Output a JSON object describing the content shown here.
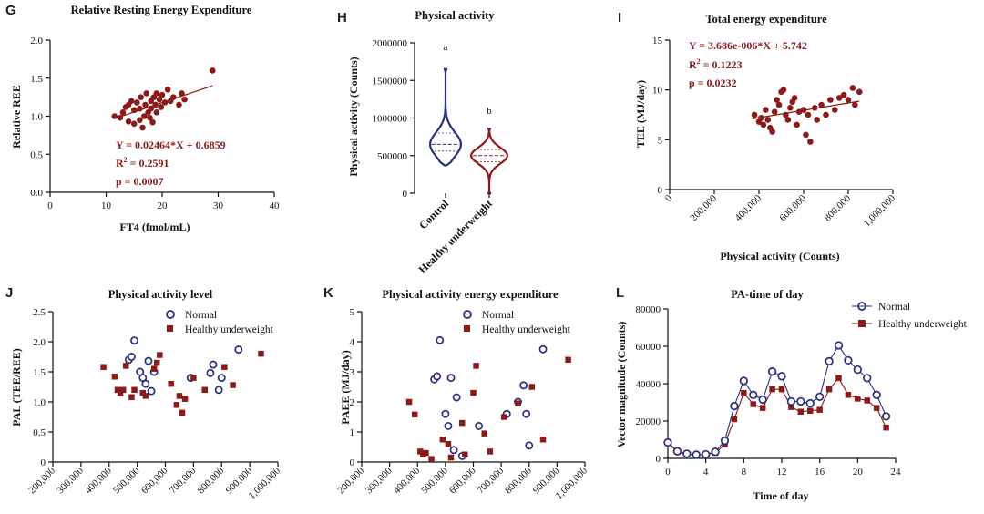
{
  "colors": {
    "dark_red": "#8b1a1a",
    "navy": "#28307f",
    "black": "#111111"
  },
  "panels": {
    "G": {
      "letter": "G",
      "title": "Relative Resting Energy Expenditure",
      "xlabel": "FT4 (fmol/mL)",
      "ylabel": "Relative REE",
      "eq": "Y = 0.02464*X + 0.6859",
      "r2_label": "R",
      "r2_value": "= 0.2591",
      "p": "p = 0.0007"
    },
    "H": {
      "letter": "H",
      "title": "Physical activity",
      "ylabel": "Physical activity (Counts)",
      "label_a": "a",
      "label_b": "b"
    },
    "I": {
      "letter": "I",
      "title": "Total energy expenditure",
      "xlabel": "Physical activity (Counts)",
      "ylabel": "TEE (MJ/day)",
      "eq": "Y = 3.686e-006*X + 5.742",
      "r2_label": "R",
      "r2_value": "= 0.1223",
      "p": "p = 0.0232"
    },
    "J": {
      "letter": "J",
      "title": "Physical activity level",
      "ylabel": "PAL (TEE/REE)",
      "legend": [
        "Normal",
        "Healthy underweight"
      ]
    },
    "K": {
      "letter": "K",
      "title": "Physical activity energy expenditure",
      "ylabel": "PAEE (MJ/day)",
      "legend": [
        "Normal",
        "Healthy underweight"
      ]
    },
    "L": {
      "letter": "L",
      "title": "PA-time of day",
      "xlabel": "Time of day",
      "ylabel": "Vector magnitude (Counts)",
      "legend": [
        "Normal",
        "Healthy underweight"
      ]
    }
  },
  "chart_data": [
    {
      "id": "G",
      "type": "scatter",
      "title": "Relative Resting Energy Expenditure",
      "xlabel": "FT4 (fmol/mL)",
      "ylabel": "Relative REE",
      "xlim": [
        0,
        40
      ],
      "ylim": [
        0,
        2.0
      ],
      "xticks": [
        0,
        10,
        20,
        30,
        40
      ],
      "yticks": [
        0.0,
        0.5,
        1.0,
        1.5,
        2.0
      ],
      "ytick_labels": [
        "0.0",
        "0.5",
        "1.0",
        "1.5",
        "2.0"
      ],
      "fit": {
        "slope": 0.02464,
        "intercept": 0.6859,
        "x_range": [
          11.5,
          29
        ]
      },
      "points": [
        [
          11.5,
          1.0
        ],
        [
          12.5,
          0.98
        ],
        [
          13,
          1.05
        ],
        [
          13.5,
          1.12
        ],
        [
          14,
          0.93
        ],
        [
          14,
          1.15
        ],
        [
          14.5,
          1.2
        ],
        [
          15,
          0.9
        ],
        [
          15,
          1.08
        ],
        [
          15.5,
          1.18
        ],
        [
          16,
          0.95
        ],
        [
          16,
          1.1
        ],
        [
          16.2,
          1.25
        ],
        [
          16.5,
          0.85
        ],
        [
          16.8,
          1.0
        ],
        [
          17,
          1.15
        ],
        [
          17.2,
          1.3
        ],
        [
          17.5,
          1.05
        ],
        [
          17.8,
          0.98
        ],
        [
          18,
          1.2
        ],
        [
          18,
          1.1
        ],
        [
          18.3,
          0.92
        ],
        [
          18.5,
          1.25
        ],
        [
          18.8,
          1.15
        ],
        [
          19,
          1.05
        ],
        [
          19,
          1.3
        ],
        [
          19.5,
          1.22
        ],
        [
          19.8,
          1.12
        ],
        [
          20,
          1.28
        ],
        [
          20.5,
          1.18
        ],
        [
          21,
          1.35
        ],
        [
          21.5,
          1.2
        ],
        [
          22,
          1.25
        ],
        [
          23,
          1.15
        ],
        [
          23.5,
          1.3
        ],
        [
          24,
          1.22
        ],
        [
          29,
          1.6
        ]
      ]
    },
    {
      "id": "H",
      "type": "violin",
      "title": "Physical activity",
      "ylabel": "Physical activity (Counts)",
      "ylim": [
        0,
        2000000
      ],
      "yticks": [
        0,
        500000,
        1000000,
        1500000,
        2000000
      ],
      "ytick_labels": [
        "0",
        "500000",
        "1000000",
        "1500000",
        "2000000"
      ],
      "categories": [
        "Control",
        "Healthy underweight"
      ],
      "groups": [
        {
          "name": "Control",
          "min": 370000,
          "max": 1650000,
          "median": 650000,
          "q1": 560000,
          "q3": 800000
        },
        {
          "name": "Healthy underweight",
          "min": 0,
          "max": 860000,
          "median": 500000,
          "q1": 420000,
          "q3": 580000
        }
      ]
    },
    {
      "id": "I",
      "type": "scatter",
      "title": "Total energy expenditure",
      "xlabel": "Physical activity (Counts)",
      "ylabel": "TEE (MJ/day)",
      "xlim": [
        0,
        1000000
      ],
      "ylim": [
        0,
        15
      ],
      "xticks": [
        0,
        200000,
        400000,
        600000,
        800000,
        1000000
      ],
      "xtick_labels": [
        "0",
        "200,000",
        "400,000",
        "600,000",
        "800,000",
        "1,000,000"
      ],
      "yticks": [
        0,
        5,
        10,
        15
      ],
      "fit": {
        "slope": 3.686e-06,
        "intercept": 5.742,
        "x_range": [
          370000,
          850000
        ]
      },
      "points": [
        [
          380000,
          7.5
        ],
        [
          400000,
          6.8
        ],
        [
          410000,
          7.2
        ],
        [
          420000,
          6.5
        ],
        [
          430000,
          8.0
        ],
        [
          440000,
          7.0
        ],
        [
          450000,
          6.2
        ],
        [
          460000,
          5.8
        ],
        [
          470000,
          7.8
        ],
        [
          480000,
          9.0
        ],
        [
          490000,
          8.5
        ],
        [
          500000,
          9.8
        ],
        [
          510000,
          10.0
        ],
        [
          520000,
          7.5
        ],
        [
          530000,
          7.0
        ],
        [
          540000,
          8.2
        ],
        [
          550000,
          8.8
        ],
        [
          560000,
          9.2
        ],
        [
          570000,
          6.5
        ],
        [
          580000,
          7.8
        ],
        [
          600000,
          8.0
        ],
        [
          610000,
          5.5
        ],
        [
          620000,
          7.5
        ],
        [
          630000,
          4.8
        ],
        [
          650000,
          8.2
        ],
        [
          660000,
          7.0
        ],
        [
          680000,
          8.5
        ],
        [
          700000,
          7.5
        ],
        [
          720000,
          9.0
        ],
        [
          740000,
          8.0
        ],
        [
          760000,
          9.2
        ],
        [
          780000,
          9.5
        ],
        [
          800000,
          9.0
        ],
        [
          820000,
          10.2
        ],
        [
          830000,
          8.5
        ],
        [
          850000,
          9.8
        ]
      ]
    },
    {
      "id": "J",
      "type": "scatter",
      "title": "Physical activity level",
      "ylabel": "PAL (TEE/REE)",
      "xlim": [
        200000,
        1000000
      ],
      "ylim": [
        0,
        2.5
      ],
      "xticks": [
        200000,
        300000,
        400000,
        500000,
        600000,
        700000,
        800000,
        900000,
        1000000
      ],
      "xtick_labels": [
        "200,000",
        "300,000",
        "400,000",
        "500,000",
        "600,000",
        "700,000",
        "800,000",
        "900,000",
        "1,000,000"
      ],
      "yticks": [
        0,
        0.5,
        1.0,
        1.5,
        2.0,
        2.5
      ],
      "ytick_labels": [
        "0",
        "0.5",
        "1.0",
        "1.5",
        "2.0",
        "2.5"
      ],
      "series": [
        {
          "name": "Normal",
          "marker": "open-circle",
          "points": [
            [
              470000,
              1.7
            ],
            [
              480000,
              1.75
            ],
            [
              490000,
              2.02
            ],
            [
              510000,
              1.5
            ],
            [
              520000,
              1.4
            ],
            [
              530000,
              1.3
            ],
            [
              540000,
              1.68
            ],
            [
              550000,
              1.18
            ],
            [
              560000,
              1.5
            ],
            [
              690000,
              1.4
            ],
            [
              760000,
              1.48
            ],
            [
              770000,
              1.62
            ],
            [
              790000,
              1.2
            ],
            [
              800000,
              1.4
            ],
            [
              860000,
              1.87
            ]
          ]
        },
        {
          "name": "Healthy underweight",
          "marker": "filled-square",
          "points": [
            [
              380000,
              1.58
            ],
            [
              420000,
              1.42
            ],
            [
              430000,
              1.2
            ],
            [
              440000,
              1.15
            ],
            [
              450000,
              1.2
            ],
            [
              460000,
              1.6
            ],
            [
              480000,
              1.08
            ],
            [
              490000,
              1.2
            ],
            [
              520000,
              1.15
            ],
            [
              530000,
              1.1
            ],
            [
              560000,
              1.55
            ],
            [
              570000,
              1.65
            ],
            [
              580000,
              1.78
            ],
            [
              620000,
              1.3
            ],
            [
              640000,
              0.95
            ],
            [
              650000,
              1.1
            ],
            [
              660000,
              0.82
            ],
            [
              670000,
              1.05
            ],
            [
              700000,
              1.4
            ],
            [
              740000,
              1.2
            ],
            [
              810000,
              1.58
            ],
            [
              840000,
              1.28
            ],
            [
              940000,
              1.8
            ]
          ]
        }
      ]
    },
    {
      "id": "K",
      "type": "scatter",
      "title": "Physical activity energy expenditure",
      "ylabel": "PAEE (MJ/day)",
      "xlim": [
        200000,
        1000000
      ],
      "ylim": [
        0,
        5
      ],
      "xticks": [
        200000,
        300000,
        400000,
        500000,
        600000,
        700000,
        800000,
        900000,
        1000000
      ],
      "xtick_labels": [
        "200,000",
        "300,000",
        "400,000",
        "500,000",
        "600,000",
        "700,000",
        "800,000",
        "900,000",
        "1,000,000"
      ],
      "yticks": [
        0,
        1,
        2,
        3,
        4,
        5
      ],
      "series": [
        {
          "name": "Normal",
          "marker": "open-circle",
          "points": [
            [
              460000,
              2.75
            ],
            [
              470000,
              2.85
            ],
            [
              480000,
              4.05
            ],
            [
              500000,
              1.6
            ],
            [
              510000,
              1.2
            ],
            [
              520000,
              2.8
            ],
            [
              530000,
              0.4
            ],
            [
              540000,
              2.15
            ],
            [
              560000,
              0.2
            ],
            [
              620000,
              1.2
            ],
            [
              720000,
              1.6
            ],
            [
              760000,
              2.0
            ],
            [
              780000,
              2.55
            ],
            [
              790000,
              1.6
            ],
            [
              800000,
              0.55
            ],
            [
              850000,
              3.75
            ]
          ]
        },
        {
          "name": "Healthy underweight",
          "marker": "filled-square",
          "points": [
            [
              370000,
              2.0
            ],
            [
              390000,
              1.58
            ],
            [
              410000,
              0.35
            ],
            [
              420000,
              0.25
            ],
            [
              430000,
              0.3
            ],
            [
              450000,
              0.1
            ],
            [
              490000,
              0.75
            ],
            [
              510000,
              0.6
            ],
            [
              520000,
              0.15
            ],
            [
              560000,
              1.3
            ],
            [
              570000,
              0.25
            ],
            [
              600000,
              2.3
            ],
            [
              610000,
              3.2
            ],
            [
              640000,
              0.95
            ],
            [
              660000,
              0.35
            ],
            [
              710000,
              1.5
            ],
            [
              760000,
              1.95
            ],
            [
              810000,
              2.5
            ],
            [
              850000,
              0.75
            ],
            [
              940000,
              3.4
            ]
          ]
        }
      ]
    },
    {
      "id": "L",
      "type": "line",
      "title": "PA-time of day",
      "xlabel": "Time of day",
      "ylabel": "Vector magnitude (Counts)",
      "xlim": [
        0,
        24
      ],
      "ylim": [
        0,
        80000
      ],
      "xticks": [
        0,
        4,
        8,
        12,
        16,
        20,
        24
      ],
      "yticks": [
        0,
        20000,
        40000,
        60000,
        80000
      ],
      "ytick_labels": [
        "0",
        "20000",
        "40000",
        "60000",
        "80000"
      ],
      "x": [
        0,
        1,
        2,
        3,
        4,
        5,
        6,
        7,
        8,
        9,
        10,
        11,
        12,
        13,
        14,
        15,
        16,
        17,
        18,
        19,
        20,
        21,
        22,
        23
      ],
      "series": [
        {
          "name": "Normal",
          "marker": "open-circle",
          "values": [
            8500,
            3800,
            2500,
            2000,
            2200,
            3500,
            9500,
            28000,
            41500,
            34000,
            31500,
            46500,
            44000,
            30500,
            30500,
            29500,
            33000,
            52000,
            60500,
            52500,
            47500,
            43000,
            34000,
            22500
          ]
        },
        {
          "name": "Healthy underweight",
          "marker": "filled-square",
          "values": [
            8500,
            3500,
            2200,
            1900,
            2000,
            3000,
            7500,
            21000,
            35000,
            29000,
            27000,
            37000,
            37000,
            27500,
            25000,
            25500,
            26000,
            37000,
            43000,
            34000,
            32000,
            31000,
            27000,
            16500
          ]
        }
      ]
    }
  ]
}
